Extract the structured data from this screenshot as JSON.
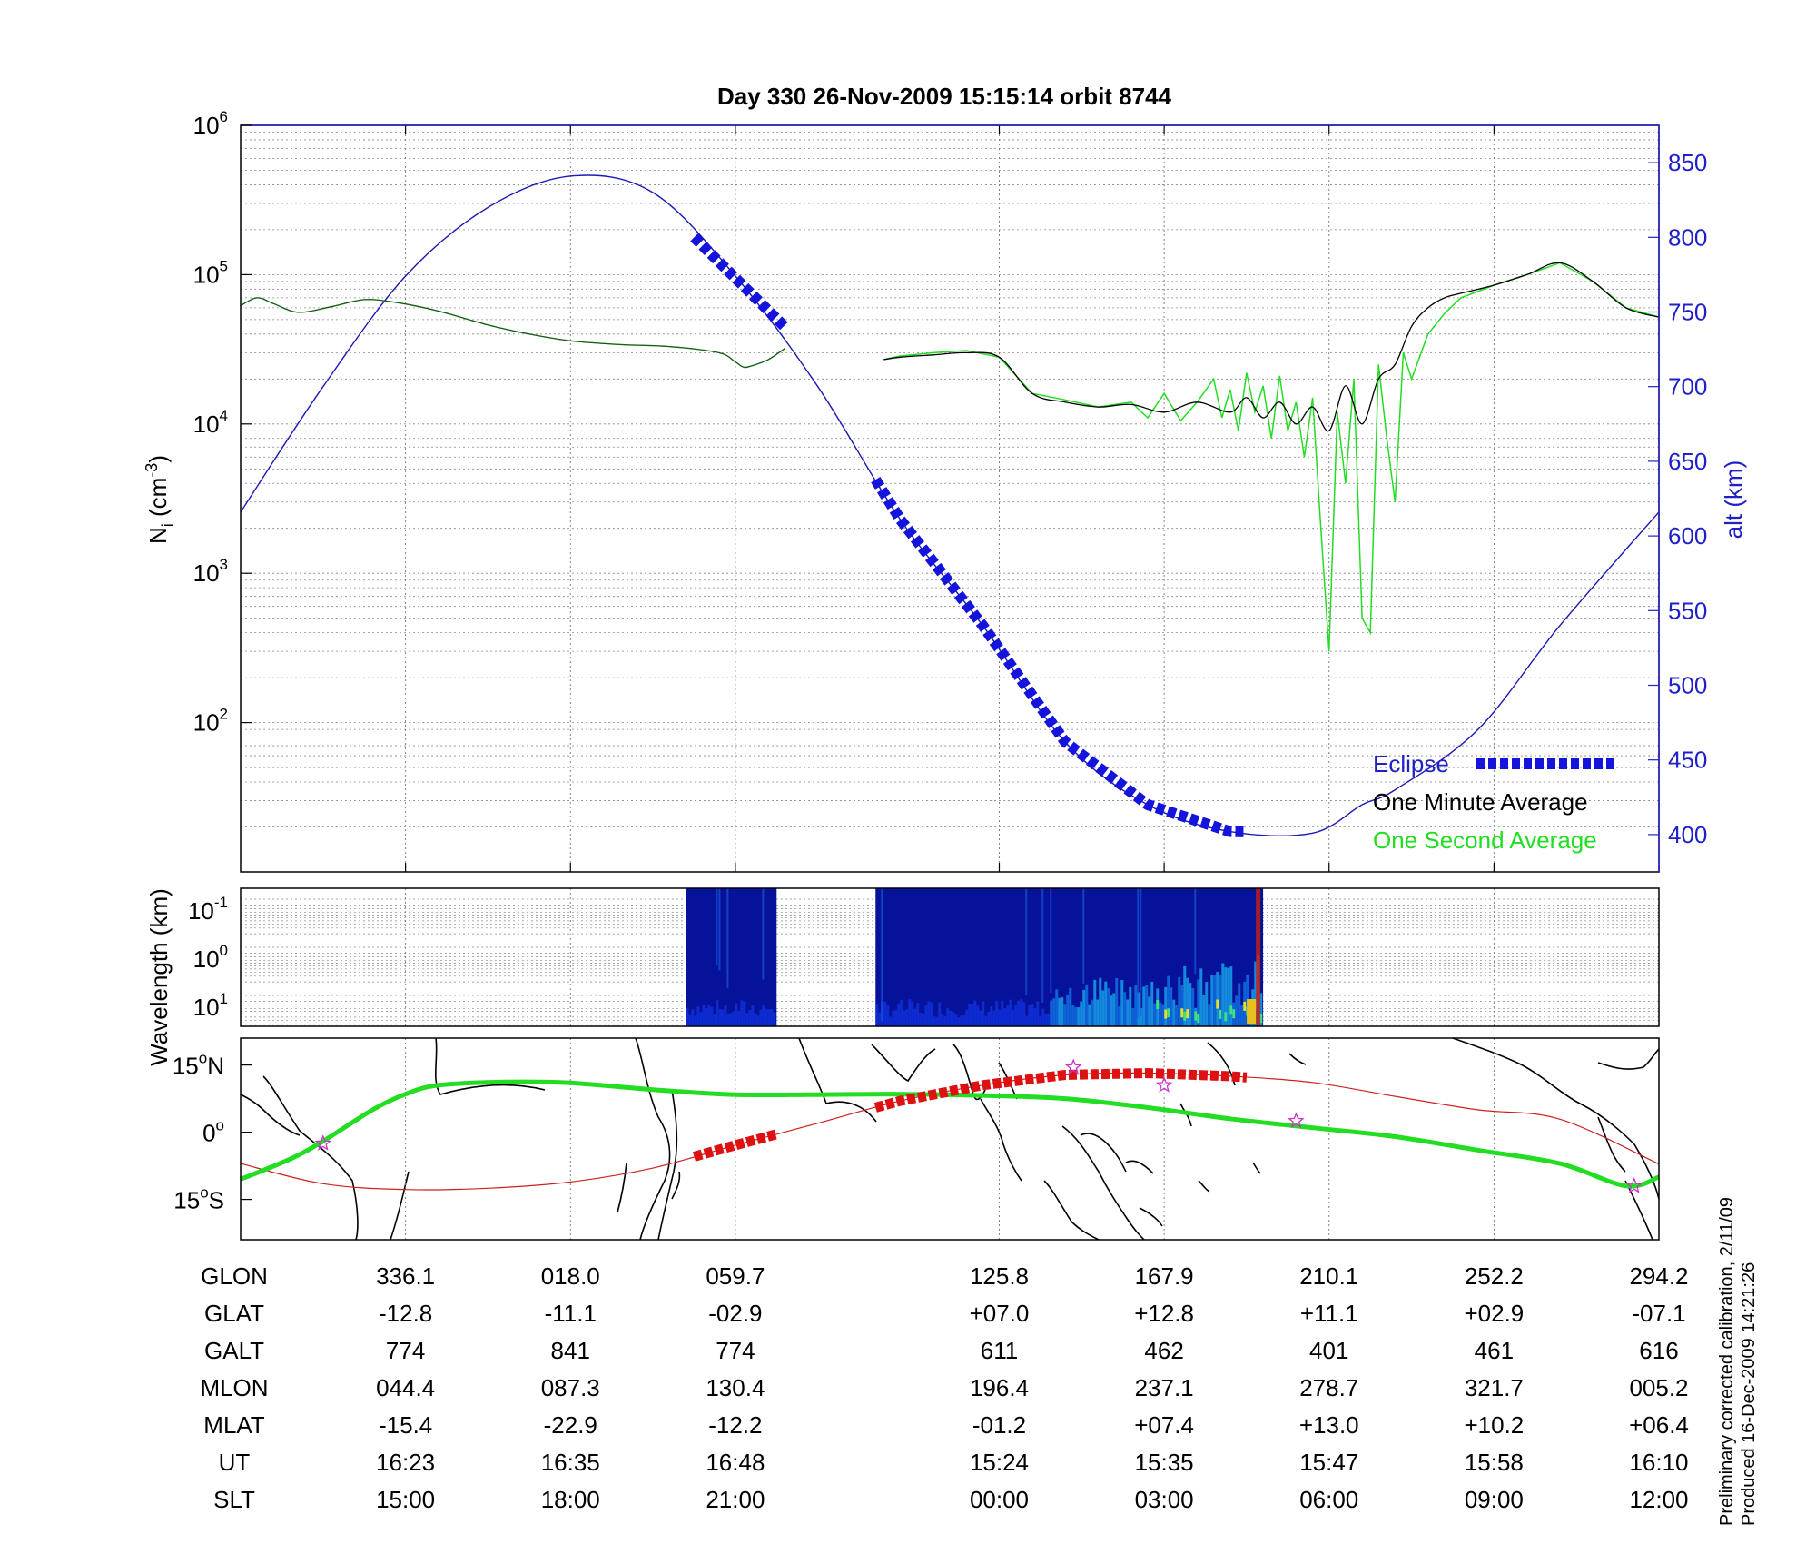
{
  "title": "Day 330  26-Nov-2009 15:15:14   orbit 8744",
  "colors": {
    "one_second": "#22dd22",
    "one_minute": "#000000",
    "altitude": "#1a1ab4",
    "eclipse": "#1414dc",
    "ground_track": "#cc2222",
    "footprint": "#22dd22",
    "stars": "#cc33cc",
    "right_axis": "#2020c8"
  },
  "chart_data": [
    {
      "type": "line",
      "panel": "ion density",
      "ylabel_main": "N",
      "ylabel_sub": "i",
      "ylabel_unit_pre": " (cm",
      "ylabel_unit_sup": "-3",
      "ylabel_unit_post": ")",
      "yscale": "log",
      "ylim": [
        10,
        1000000
      ],
      "y_ticks": [
        {
          "value": 100,
          "base": "10",
          "exp": "2"
        },
        {
          "value": 1000,
          "base": "10",
          "exp": "3"
        },
        {
          "value": 10000,
          "base": "10",
          "exp": "4"
        },
        {
          "value": 100000,
          "base": "10",
          "exp": "5"
        },
        {
          "value": 1000000,
          "base": "10",
          "exp": "6"
        }
      ],
      "y2label": "alt (km)",
      "y2lim": [
        375,
        875
      ],
      "y2_ticks": [
        "400",
        "450",
        "500",
        "550",
        "600",
        "650",
        "700",
        "750",
        "800",
        "850"
      ],
      "x_index_range": [
        0,
        8.6
      ],
      "grid": true,
      "legend": "bottom-right",
      "legend_entries": [
        "Eclipse",
        "One Minute Average",
        "One Second Average"
      ],
      "series": [
        {
          "name": "One Minute Average",
          "x": [
            0,
            0.1,
            0.2,
            0.35,
            0.55,
            0.75,
            0.95,
            1.2,
            1.5,
            1.75,
            2.0,
            2.3,
            2.6,
            2.9,
            3.0,
            3.05,
            3.1,
            3.2,
            3.3
          ],
          "y": [
            62000,
            70000,
            64000,
            56000,
            61000,
            68000,
            65000,
            57000,
            46000,
            40000,
            36000,
            34000,
            33000,
            30000,
            26000,
            24000,
            24500,
            27000,
            32000
          ]
        },
        {
          "name": "One Minute Average",
          "x": [
            3.9,
            4.0,
            4.2,
            4.4,
            4.6,
            4.8,
            5.0,
            5.2,
            5.4,
            5.6,
            5.8,
            6.0,
            6.1,
            6.2,
            6.3,
            6.4,
            6.5,
            6.6,
            6.7,
            6.8,
            6.9,
            7.0,
            7.1,
            7.2,
            7.3,
            7.4,
            7.6,
            7.8,
            8.0,
            8.2,
            8.4,
            8.6
          ],
          "y": [
            27000,
            28000,
            29000,
            30000,
            28000,
            16000,
            14000,
            13000,
            13500,
            12000,
            14000,
            12000,
            15000,
            11000,
            14000,
            10000,
            13000,
            9000,
            18000,
            10000,
            20000,
            25000,
            45000,
            60000,
            70000,
            75000,
            85000,
            100000,
            120000,
            90000,
            60000,
            52000
          ]
        },
        {
          "name": "One Second Average",
          "x": [
            3.9,
            4.0,
            4.2,
            4.4,
            4.6,
            4.8,
            5.0,
            5.2,
            5.4,
            5.5,
            5.6,
            5.7,
            5.8,
            5.9,
            5.95,
            6.0,
            6.05,
            6.1,
            6.15,
            6.2,
            6.25,
            6.3,
            6.35,
            6.4,
            6.45,
            6.5,
            6.55,
            6.6,
            6.65,
            6.7,
            6.75,
            6.8,
            6.85,
            6.9,
            6.95,
            7.0,
            7.05,
            7.1,
            7.2,
            7.3,
            7.4,
            7.6,
            7.8,
            8.0,
            8.2,
            8.4,
            8.6
          ],
          "y": [
            27000,
            28500,
            30000,
            31000,
            28000,
            16000,
            14500,
            13000,
            14000,
            11000,
            16000,
            10500,
            14000,
            20000,
            11000,
            17000,
            9000,
            22000,
            12000,
            18000,
            8000,
            21000,
            9000,
            14000,
            6000,
            15000,
            2000,
            300,
            12000,
            4000,
            20000,
            500,
            400,
            25000,
            8000,
            3000,
            30000,
            20000,
            40000,
            55000,
            70000,
            85000,
            100000,
            120000,
            90000,
            60000,
            52000
          ]
        },
        {
          "name": "alt",
          "axis": "right",
          "x": [
            0,
            0.5,
            1.0,
            1.5,
            2.0,
            2.5,
            3.0,
            3.5,
            4.0,
            4.5,
            5.0,
            5.5,
            6.0,
            6.5,
            6.8,
            7.0,
            7.5,
            8.0,
            8.6
          ],
          "y": [
            616,
            700,
            774,
            820,
            841,
            830,
            774,
            700,
            611,
            540,
            462,
            420,
            402,
            401,
            420,
            430,
            470,
            540,
            616
          ]
        }
      ],
      "eclipse": [
        {
          "x": [
            2.75,
            3.3
          ],
          "y": [
            800,
            740
          ]
        },
        {
          "x": [
            3.85,
            6.1
          ],
          "y": [
            727,
            412
          ]
        }
      ]
    },
    {
      "type": "heatmap",
      "panel": "spectrogram",
      "ylabel": "Wavelength (km)",
      "yscale": "log",
      "y_ticks": [
        {
          "base": "10",
          "exp": "-1"
        },
        {
          "base": "10",
          "exp": "0"
        },
        {
          "base": "10",
          "exp": "1"
        }
      ],
      "segments": [
        {
          "x_start": 2.7,
          "x_end": 3.25
        },
        {
          "x_start": 3.85,
          "x_end": 6.2
        }
      ]
    },
    {
      "type": "map",
      "panel": "ground track",
      "y_ticks": [
        {
          "value": 15,
          "deg": "15",
          "hemi": "N"
        },
        {
          "value": 0,
          "deg": "0",
          "hemi": ""
        },
        {
          "value": -15,
          "deg": "15",
          "hemi": "S"
        }
      ],
      "ground_track": {
        "x": [
          0,
          0.5,
          1.0,
          1.5,
          2.0,
          2.5,
          3.0,
          3.5,
          4.0,
          4.5,
          5.0,
          5.5,
          6.0,
          6.5,
          7.0,
          7.5,
          8.0,
          8.6
        ],
        "lat": [
          -7,
          -11.5,
          -12.8,
          -12.5,
          -11.1,
          -8,
          -2.9,
          2,
          7.0,
          10.5,
          12.8,
          13.2,
          12.5,
          11.1,
          8,
          5,
          2.9,
          -7.1
        ]
      },
      "footprint": {
        "x": [
          0,
          0.3,
          0.5,
          0.8,
          1.0,
          1.2,
          1.6,
          2.0,
          2.5,
          3.0,
          3.5,
          4.0,
          4.5,
          5.0,
          5.5,
          6.0,
          6.5,
          7.0,
          7.5,
          8.0,
          8.4,
          8.6
        ],
        "lat": [
          -10.5,
          -6,
          -2,
          5,
          8.5,
          10.5,
          11.2,
          11,
          9.5,
          8.4,
          8.4,
          8.5,
          8.2,
          7.5,
          5.5,
          3,
          1,
          -1,
          -4,
          -7,
          -12,
          -10
        ]
      },
      "eclipse_track": [
        {
          "x": [
            2.75,
            3.25
          ],
          "lat": [
            -5,
            0.5
          ]
        },
        {
          "x": [
            3.85,
            6.1
          ],
          "lat": [
            1,
            13
          ]
        }
      ],
      "stars": [
        {
          "x": 0.5,
          "lat": -2.5
        },
        {
          "x": 5.05,
          "lat": 14.5
        },
        {
          "x": 5.6,
          "lat": 10.5
        },
        {
          "x": 6.4,
          "lat": 2.5
        },
        {
          "x": 8.45,
          "lat": -12
        }
      ]
    }
  ],
  "table": {
    "row_labels": [
      "GLON",
      "GLAT",
      "GALT",
      "MLON",
      "MLAT",
      "UT",
      "SLT"
    ],
    "columns": [
      {
        "x": 1.0,
        "values": [
          "336.1",
          "-12.8",
          "774",
          "044.4",
          "-15.4",
          "16:23",
          "15:00"
        ]
      },
      {
        "x": 2.0,
        "values": [
          "018.0",
          "-11.1",
          "841",
          "087.3",
          "-22.9",
          "16:35",
          "18:00"
        ]
      },
      {
        "x": 3.0,
        "values": [
          "059.7",
          "-02.9",
          "774",
          "130.4",
          "-12.2",
          "16:48",
          "21:00"
        ]
      },
      {
        "x": 4.6,
        "values": [
          "125.8",
          "+07.0",
          "611",
          "196.4",
          "-01.2",
          "15:24",
          "00:00"
        ]
      },
      {
        "x": 5.6,
        "values": [
          "167.9",
          "+12.8",
          "462",
          "237.1",
          "+07.4",
          "15:35",
          "03:00"
        ]
      },
      {
        "x": 6.6,
        "values": [
          "210.1",
          "+11.1",
          "401",
          "278.7",
          "+13.0",
          "15:47",
          "06:00"
        ]
      },
      {
        "x": 7.6,
        "values": [
          "252.2",
          "+02.9",
          "461",
          "321.7",
          "+10.2",
          "15:58",
          "09:00"
        ]
      },
      {
        "x": 8.6,
        "values": [
          "294.2",
          "-07.1",
          "616",
          "005.2",
          "+06.4",
          "16:10",
          "12:00"
        ]
      }
    ]
  },
  "footer_notes": [
    "Preliminary corrected calibration, 2/11/09",
    "Produced 16-Dec-2009 14:21:26"
  ]
}
